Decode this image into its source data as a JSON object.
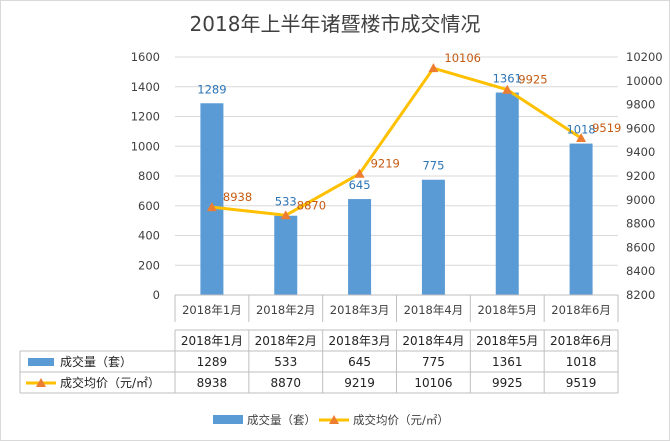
{
  "chart_data": {
    "type": "bar+line",
    "title": "2018年上半年诸暨楼市成交情况",
    "categories": [
      "2018年1月",
      "2018年2月",
      "2018年3月",
      "2018年4月",
      "2018年5月",
      "2018年6月"
    ],
    "series": [
      {
        "name": "成交量（套）",
        "type": "bar",
        "axis": "left",
        "color": "#5b9bd5",
        "values": [
          1289,
          533,
          645,
          775,
          1361,
          1018
        ]
      },
      {
        "name": "成交均价（元/㎡）",
        "type": "line",
        "axis": "right",
        "color": "#ffc000",
        "marker_color": "#ed7d31",
        "values": [
          8938,
          8870,
          9219,
          10106,
          9925,
          9519
        ]
      }
    ],
    "y_left": {
      "min": 0,
      "max": 1600,
      "ticks": [
        "0",
        "200",
        "400",
        "600",
        "800",
        "1000",
        "1200",
        "1400",
        "1600"
      ]
    },
    "y_right": {
      "min": 8200,
      "max": 10200,
      "ticks": [
        "8200",
        "8400",
        "8600",
        "8800",
        "9000",
        "9200",
        "9400",
        "9600",
        "9800",
        "10000",
        "10200"
      ]
    },
    "data_table": true,
    "legend_position": "bottom",
    "grid": true
  }
}
